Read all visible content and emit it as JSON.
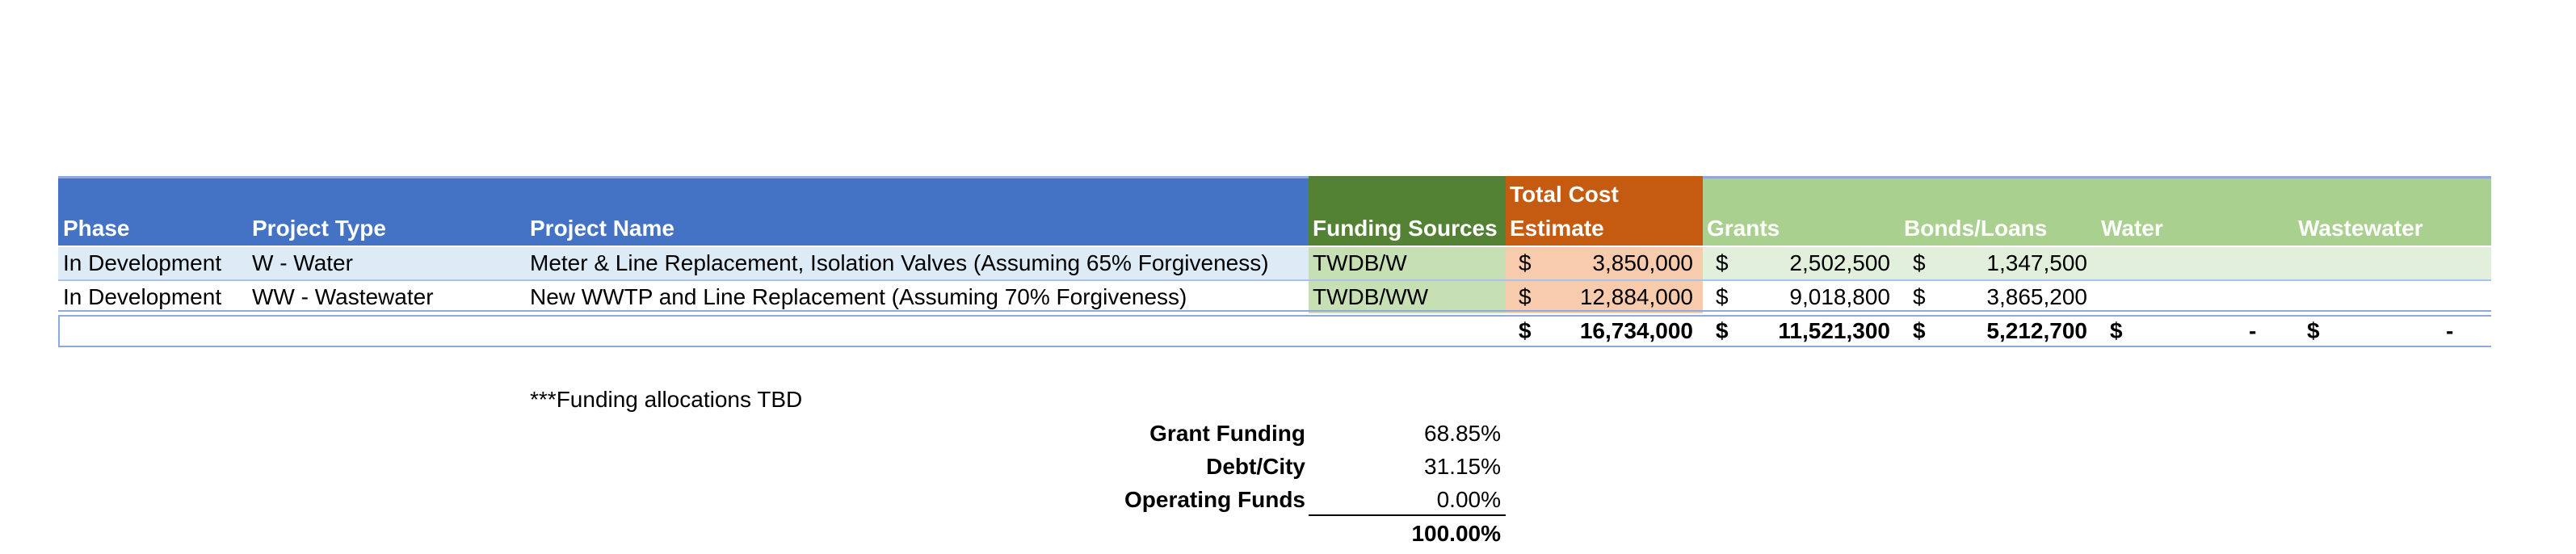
{
  "colors": {
    "header_blue": "#4472C4",
    "header_green_dark": "#548235",
    "header_orange": "#C55A11",
    "header_green_light": "#A9D08E",
    "row_blue_light": "#DDEBF7",
    "funding_green": "#C6E0B4",
    "cost_peach": "#F8CBAD",
    "grants_green_pale": "#E2EFDA"
  },
  "table": {
    "headers": {
      "phase": "Phase",
      "project_type": "Project Type",
      "project_name": "Project Name",
      "funding_sources": "Funding Sources",
      "total_cost_line1": "Total Cost",
      "total_cost_line2": "Estimate",
      "grants": "Grants",
      "bonds_loans": "Bonds/Loans",
      "water": "Water",
      "wastewater": "Wastewater"
    },
    "rows": [
      {
        "phase": "In Development",
        "project_type": "W - Water",
        "project_name": "Meter & Line Replacement, Isolation Valves (Assuming 65% Forgiveness)",
        "funding_source": "TWDB/W",
        "cost_symbol": "$",
        "cost": "3,850,000",
        "grants_symbol": "$",
        "grants": "2,502,500",
        "bonds_symbol": "$",
        "bonds": "1,347,500"
      },
      {
        "phase": "In Development",
        "project_type": "WW - Wastewater",
        "project_name": "New WWTP and Line Replacement (Assuming 70% Forgiveness)",
        "funding_source": "TWDB/WW",
        "cost_symbol": "$",
        "cost": "12,884,000",
        "grants_symbol": "$",
        "grants": "9,018,800",
        "bonds_symbol": "$",
        "bonds": "3,865,200"
      }
    ],
    "totals": {
      "cost_symbol": "$",
      "cost": "16,734,000",
      "grants_symbol": "$",
      "grants": "11,521,300",
      "bonds_symbol": "$",
      "bonds": "5,212,700",
      "water_symbol": "$",
      "water": "-",
      "wastewater_symbol": "$",
      "wastewater": "-"
    }
  },
  "note": "***Funding allocations TBD",
  "summary": [
    {
      "label": "Grant Funding",
      "value": "68.85%"
    },
    {
      "label": "Debt/City",
      "value": "31.15%"
    },
    {
      "label": "Operating Funds",
      "value": "0.00%"
    }
  ],
  "summary_total": "100.00%"
}
